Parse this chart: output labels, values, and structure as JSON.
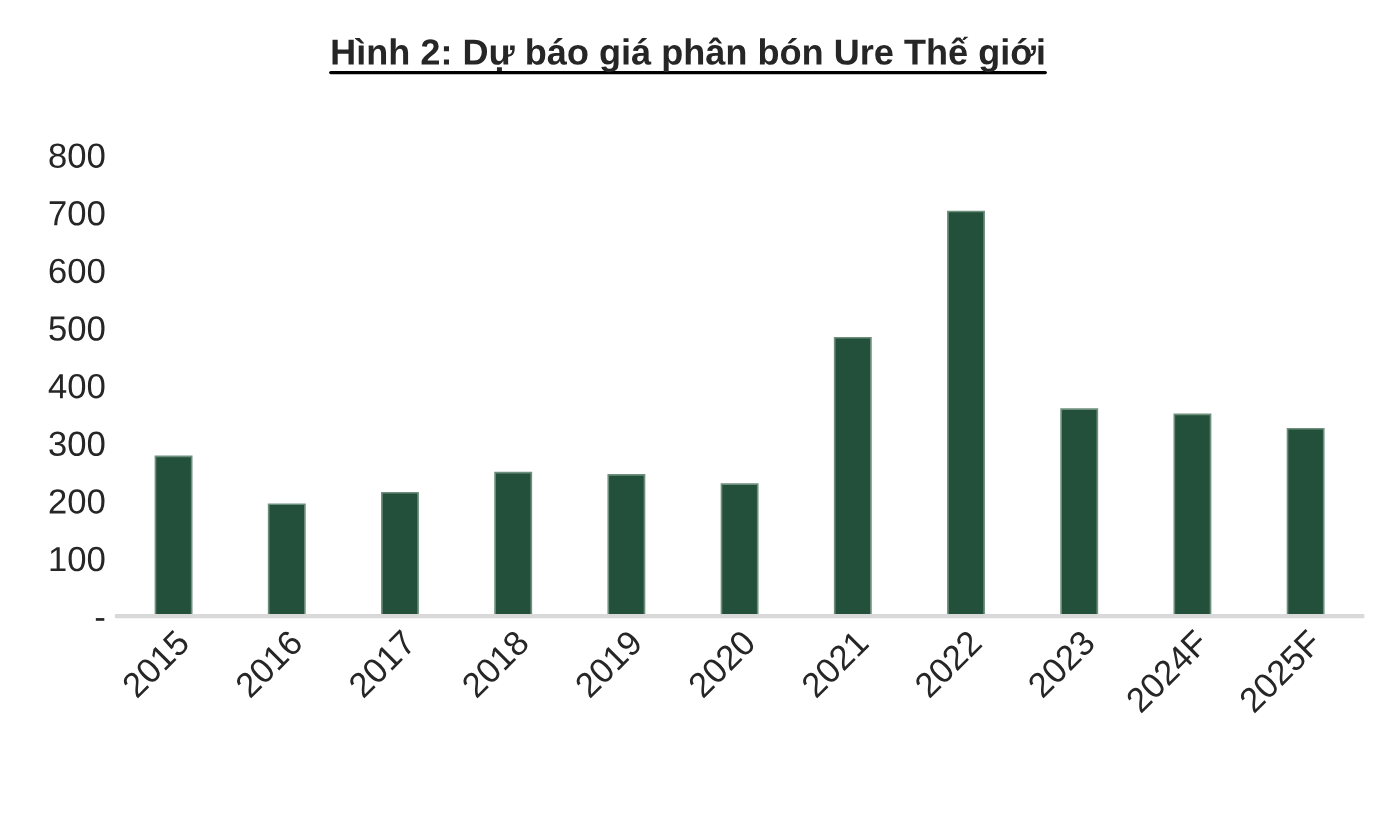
{
  "chart_data": {
    "type": "bar",
    "title": "Hình 2: Dự báo giá phân bón Ure Thế giới",
    "categories": [
      "2015",
      "2016",
      "2017",
      "2018",
      "2019",
      "2020",
      "2021",
      "2022",
      "2023",
      "2024F",
      "2025F"
    ],
    "values": [
      277,
      194,
      214,
      249,
      245,
      229,
      483,
      702,
      359,
      350,
      325
    ],
    "color": "#22503a",
    "ylim": [
      0,
      800
    ],
    "yticks": [
      {
        "value": 0,
        "label": "-"
      },
      100,
      200,
      300,
      400,
      500,
      600,
      700,
      800
    ],
    "grid": false
  }
}
